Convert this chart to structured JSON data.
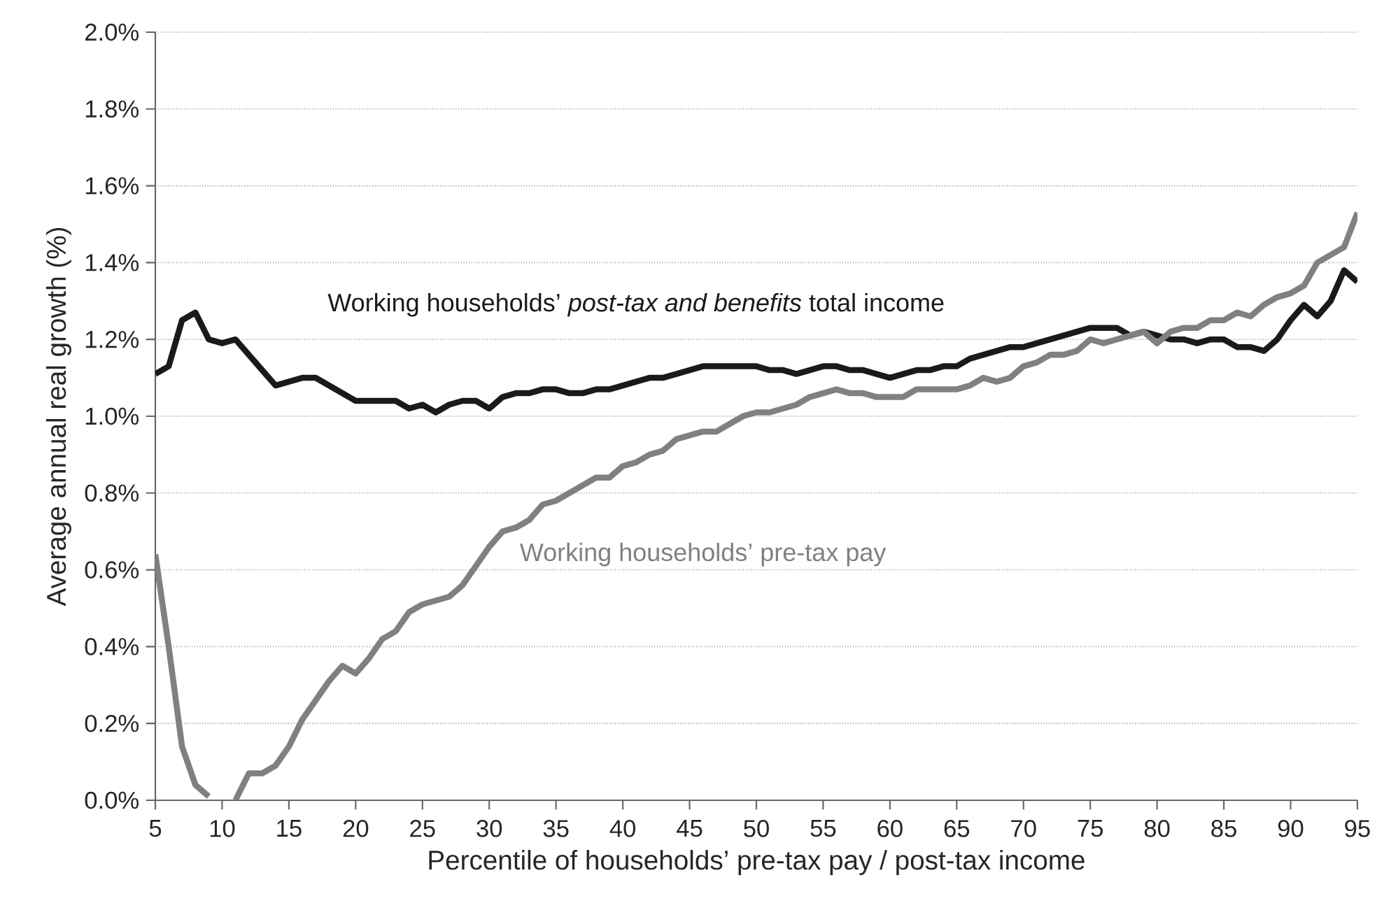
{
  "chart_data": {
    "type": "line",
    "xlabel": "Percentile of households’ pre-tax pay / post-tax income",
    "ylabel": "Average annual real growth (%)",
    "x": [
      5,
      6,
      7,
      8,
      9,
      10,
      11,
      12,
      13,
      14,
      15,
      16,
      17,
      18,
      19,
      20,
      21,
      22,
      23,
      24,
      25,
      26,
      27,
      28,
      29,
      30,
      31,
      32,
      33,
      34,
      35,
      36,
      37,
      38,
      39,
      40,
      41,
      42,
      43,
      44,
      45,
      46,
      47,
      48,
      49,
      50,
      51,
      52,
      53,
      54,
      55,
      56,
      57,
      58,
      59,
      60,
      61,
      62,
      63,
      64,
      65,
      66,
      67,
      68,
      69,
      70,
      71,
      72,
      73,
      74,
      75,
      76,
      77,
      78,
      79,
      80,
      81,
      82,
      83,
      84,
      85,
      86,
      87,
      88,
      89,
      90,
      91,
      92,
      93,
      94,
      95
    ],
    "series": [
      {
        "name": "Working households’ *post-tax and benefits* total income",
        "color": "#1a1a1a",
        "values": [
          1.11,
          1.13,
          1.25,
          1.27,
          1.2,
          1.19,
          1.2,
          1.16,
          1.12,
          1.08,
          1.09,
          1.1,
          1.1,
          1.08,
          1.06,
          1.04,
          1.04,
          1.04,
          1.04,
          1.02,
          1.03,
          1.01,
          1.03,
          1.04,
          1.04,
          1.02,
          1.05,
          1.06,
          1.06,
          1.07,
          1.07,
          1.06,
          1.06,
          1.07,
          1.07,
          1.08,
          1.09,
          1.1,
          1.1,
          1.11,
          1.12,
          1.13,
          1.13,
          1.13,
          1.13,
          1.13,
          1.12,
          1.12,
          1.11,
          1.12,
          1.13,
          1.13,
          1.12,
          1.12,
          1.11,
          1.1,
          1.11,
          1.12,
          1.12,
          1.13,
          1.13,
          1.15,
          1.16,
          1.17,
          1.18,
          1.18,
          1.19,
          1.2,
          1.21,
          1.22,
          1.23,
          1.23,
          1.23,
          1.21,
          1.22,
          1.21,
          1.2,
          1.2,
          1.19,
          1.2,
          1.2,
          1.18,
          1.18,
          1.17,
          1.2,
          1.25,
          1.29,
          1.26,
          1.3,
          1.38,
          1.35
        ]
      },
      {
        "name": "Working households’ pre-tax pay",
        "color": "#808080",
        "values": [
          0.64,
          0.4,
          0.14,
          0.04,
          0.01,
          null,
          0.0,
          0.07,
          0.07,
          0.09,
          0.14,
          0.21,
          0.26,
          0.31,
          0.35,
          0.33,
          0.37,
          0.42,
          0.44,
          0.49,
          0.51,
          0.52,
          0.53,
          0.56,
          0.61,
          0.66,
          0.7,
          0.71,
          0.73,
          0.77,
          0.78,
          0.8,
          0.82,
          0.84,
          0.84,
          0.87,
          0.88,
          0.9,
          0.91,
          0.94,
          0.95,
          0.96,
          0.96,
          0.98,
          1.0,
          1.01,
          1.01,
          1.02,
          1.03,
          1.05,
          1.06,
          1.07,
          1.06,
          1.06,
          1.05,
          1.05,
          1.05,
          1.07,
          1.07,
          1.07,
          1.07,
          1.08,
          1.1,
          1.09,
          1.1,
          1.13,
          1.14,
          1.16,
          1.16,
          1.17,
          1.2,
          1.19,
          1.2,
          1.21,
          1.22,
          1.19,
          1.22,
          1.23,
          1.23,
          1.25,
          1.25,
          1.27,
          1.26,
          1.29,
          1.31,
          1.32,
          1.34,
          1.4,
          1.42,
          1.44,
          1.53
        ]
      }
    ],
    "xlim": [
      5,
      95
    ],
    "xticks": [
      5,
      10,
      15,
      20,
      25,
      30,
      35,
      40,
      45,
      50,
      55,
      60,
      65,
      70,
      75,
      80,
      85,
      90,
      95
    ],
    "ylim": [
      0,
      2
    ],
    "yticks": [
      {
        "value": 0,
        "label": "0.0%"
      },
      {
        "value": 0.2,
        "label": "0.2%"
      },
      {
        "value": 0.4,
        "label": "0.4%"
      },
      {
        "value": 0.6,
        "label": "0.6%"
      },
      {
        "value": 0.8,
        "label": "0.8%"
      },
      {
        "value": 1.0,
        "label": "1.0%"
      },
      {
        "value": 1.2,
        "label": "1.2%"
      },
      {
        "value": 1.4,
        "label": "1.4%"
      },
      {
        "value": 1.6,
        "label": "1.6%"
      },
      {
        "value": 1.8,
        "label": "1.8%"
      },
      {
        "value": 2.0,
        "label": "2.0%"
      }
    ],
    "grid": "y",
    "line_style": "solid"
  }
}
